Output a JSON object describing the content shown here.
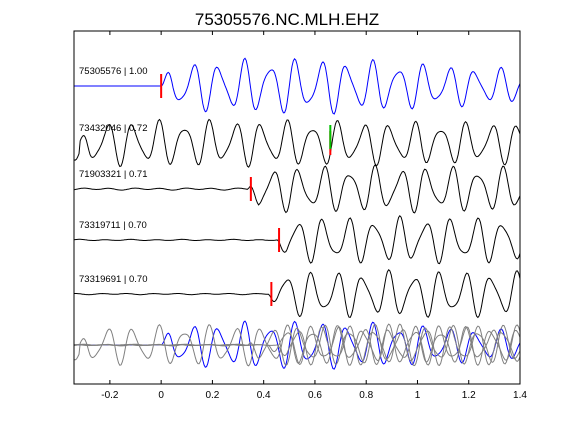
{
  "chart_data": {
    "type": "line",
    "title": "75305576.NC.MLH.EHZ",
    "xlabel": "",
    "ylabel": "",
    "xlim": [
      -0.34,
      1.4
    ],
    "xticks": [
      -0.2,
      0,
      0.2,
      0.4,
      0.6,
      0.8,
      1,
      1.2,
      1.4
    ],
    "xtick_labels": [
      "-0.2",
      "0",
      "0.2",
      "0.4",
      "0.6",
      "0.8",
      "1",
      "1.2",
      "1.4"
    ],
    "grid": false,
    "colors": {
      "reference_trace": "#0000ff",
      "trace": "#000000",
      "overlay_trace": "#808080",
      "pick": "#ff0000",
      "secondary_pick": "#00c000"
    },
    "series": [
      {
        "label": "75305576 | 1.00",
        "color": "#0000ff",
        "pick_time": 0.0,
        "secondary_pick_time": null,
        "onset": 0.0,
        "pre_amplitude": 0.0,
        "amplitude": 1.0,
        "period": 0.1,
        "growth": 0.25
      },
      {
        "label": "73432046 | 0.72",
        "color": "#000000",
        "pick_time": 0.66,
        "secondary_pick_time": 0.66,
        "onset": -0.32,
        "pre_amplitude": 0.9,
        "amplitude": 1.0,
        "period": 0.1,
        "growth": 0.05
      },
      {
        "label": "71903321 | 0.71",
        "color": "#000000",
        "pick_time": 0.35,
        "secondary_pick_time": null,
        "onset": 0.34,
        "pre_amplitude": 0.05,
        "amplitude": 1.0,
        "period": 0.1,
        "growth": 0.05
      },
      {
        "label": "73319711 | 0.70",
        "color": "#000000",
        "pick_time": 0.46,
        "secondary_pick_time": null,
        "onset": 0.45,
        "pre_amplitude": 0.03,
        "amplitude": 1.0,
        "period": 0.1,
        "growth": 0.05
      },
      {
        "label": "73319691 | 0.70",
        "color": "#000000",
        "pick_time": 0.43,
        "secondary_pick_time": null,
        "onset": 0.42,
        "pre_amplitude": 0.03,
        "amplitude": 1.0,
        "period": 0.1,
        "growth": 0.05
      }
    ]
  }
}
